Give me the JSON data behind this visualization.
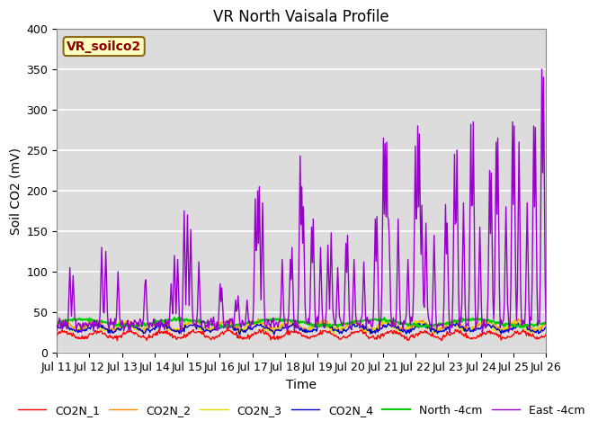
{
  "title": "VR North Vaisala Profile",
  "xlabel": "Time",
  "ylabel": "Soil CO2 (mV)",
  "ylim": [
    0,
    400
  ],
  "annotation": "VR_soilco2",
  "annotation_color": "#8B0000",
  "annotation_bg": "#FFFFC0",
  "legend_labels": [
    "CO2N_1",
    "CO2N_2",
    "CO2N_3",
    "CO2N_4",
    "North -4cm",
    "East -4cm"
  ],
  "line_colors": [
    "#FF0000",
    "#FF8C00",
    "#DDDD00",
    "#0000CC",
    "#00CC00",
    "#9900CC"
  ],
  "line_widths": [
    1.0,
    1.0,
    1.0,
    1.0,
    1.5,
    1.0
  ],
  "xtick_labels": [
    "Jul 11",
    "Jul 12",
    "Jul 13",
    "Jul 14",
    "Jul 15",
    "Jul 16",
    "Jul 17",
    "Jul 18",
    "Jul 19",
    "Jul 20",
    "Jul 21",
    "Jul 22",
    "Jul 23",
    "Jul 24",
    "Jul 25",
    "Jul 26"
  ],
  "n_points": 600,
  "facecolor": "#DCDCDC",
  "title_fontsize": 12,
  "tick_fontsize": 9,
  "label_fontsize": 10,
  "legend_fontsize": 9
}
